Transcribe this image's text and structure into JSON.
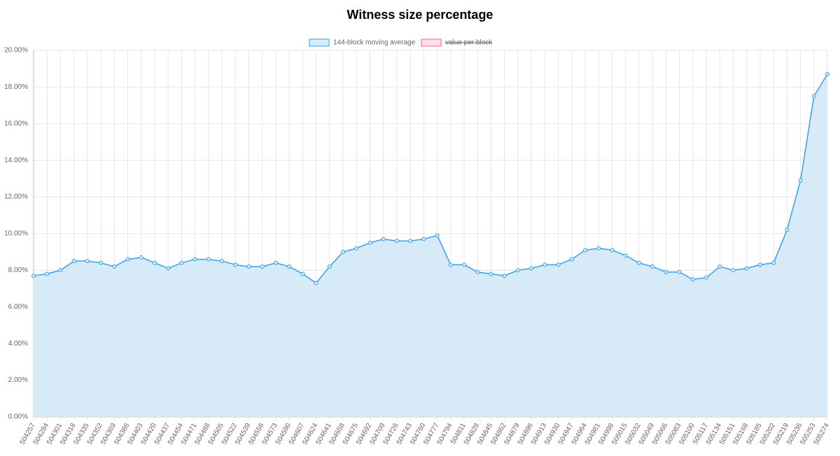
{
  "chart_data": {
    "type": "area",
    "title": "Witness size percentage",
    "categories": [
      "504257",
      "504284",
      "504301",
      "504318",
      "504335",
      "504352",
      "504369",
      "504386",
      "504403",
      "504420",
      "504437",
      "504454",
      "504471",
      "504488",
      "504505",
      "504522",
      "504539",
      "504556",
      "504573",
      "504590",
      "504607",
      "504624",
      "504641",
      "504658",
      "504675",
      "504692",
      "504709",
      "504726",
      "504743",
      "504760",
      "504777",
      "504794",
      "504811",
      "504828",
      "504845",
      "504862",
      "504879",
      "504896",
      "504913",
      "504930",
      "504947",
      "504964",
      "504981",
      "504998",
      "505015",
      "505032",
      "505049",
      "505066",
      "505083",
      "505100",
      "505117",
      "505134",
      "505151",
      "505168",
      "505185",
      "505202",
      "505219",
      "505236",
      "505253",
      "505274"
    ],
    "series": [
      {
        "name": "144-block moving average",
        "color": "#36a2eb",
        "fill": "#d6eaf8",
        "values": [
          7.7,
          7.8,
          8.0,
          8.5,
          8.5,
          8.4,
          8.2,
          8.6,
          8.7,
          8.4,
          8.1,
          8.4,
          8.6,
          8.6,
          8.5,
          8.3,
          8.2,
          8.2,
          8.4,
          8.2,
          7.8,
          7.3,
          8.2,
          9.0,
          9.2,
          9.5,
          9.7,
          9.6,
          9.6,
          9.7,
          9.9,
          8.3,
          8.3,
          7.9,
          7.8,
          7.7,
          8.0,
          8.1,
          8.3,
          8.3,
          8.6,
          9.1,
          9.2,
          9.1,
          8.8,
          8.4,
          8.2,
          7.9,
          7.9,
          7.5,
          7.6,
          8.2,
          8.0,
          8.1,
          8.3,
          8.4,
          10.2,
          12.9,
          17.5,
          18.7
        ]
      },
      {
        "name": "value per block",
        "color": "#ff6384",
        "fill": "#ffe0e6",
        "hidden": true
      }
    ],
    "ylim": [
      0,
      20
    ],
    "yticks": [
      {
        "value": 0,
        "label": "0.00%"
      },
      {
        "value": 2,
        "label": "2.00%"
      },
      {
        "value": 4,
        "label": "4.00%"
      },
      {
        "value": 6,
        "label": "6.00%"
      },
      {
        "value": 8,
        "label": "8.00%"
      },
      {
        "value": 10,
        "label": "10.00%"
      },
      {
        "value": 12,
        "label": "12.00%"
      },
      {
        "value": 14,
        "label": "14.00%"
      },
      {
        "value": 16,
        "label": "16.00%"
      },
      {
        "value": 18,
        "label": "18.00%"
      },
      {
        "value": 20,
        "label": "20.00%"
      }
    ],
    "grid": true,
    "legend": "top"
  }
}
